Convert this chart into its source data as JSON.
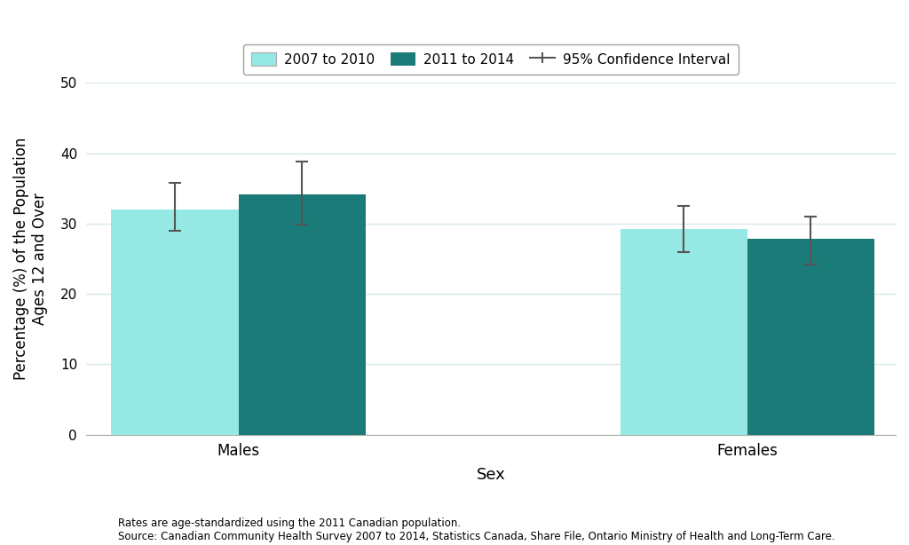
{
  "categories": [
    "Males",
    "Females"
  ],
  "bar1_values": [
    32.0,
    29.2
  ],
  "bar2_values": [
    34.2,
    27.8
  ],
  "bar1_ci_low": [
    29.0,
    26.0
  ],
  "bar1_ci_high": [
    35.8,
    32.5
  ],
  "bar2_ci_low": [
    29.8,
    24.2
  ],
  "bar2_ci_high": [
    38.8,
    31.0
  ],
  "color1": "#96e8e4",
  "color2": "#1b7b79",
  "ylabel": "Percentage (%) of the Population\nAges 12 and Over",
  "xlabel": "Sex",
  "ylim": [
    0,
    50
  ],
  "yticks": [
    0,
    10,
    20,
    30,
    40,
    50
  ],
  "legend_label1": "2007 to 2010",
  "legend_label2": "2011 to 2014",
  "legend_label3": "95% Confidence Interval",
  "footnote1": "Rates are age-standardized using the 2011 Canadian population.",
  "footnote2": "Source: Canadian Community Health Survey 2007 to 2014, Statistics Canada, Share File, Ontario Ministry of Health and Long-Term Care.",
  "bar_width": 0.75,
  "background_color": "#ffffff",
  "grid_color": "#d8e8e8",
  "error_bar_color": "#555555"
}
